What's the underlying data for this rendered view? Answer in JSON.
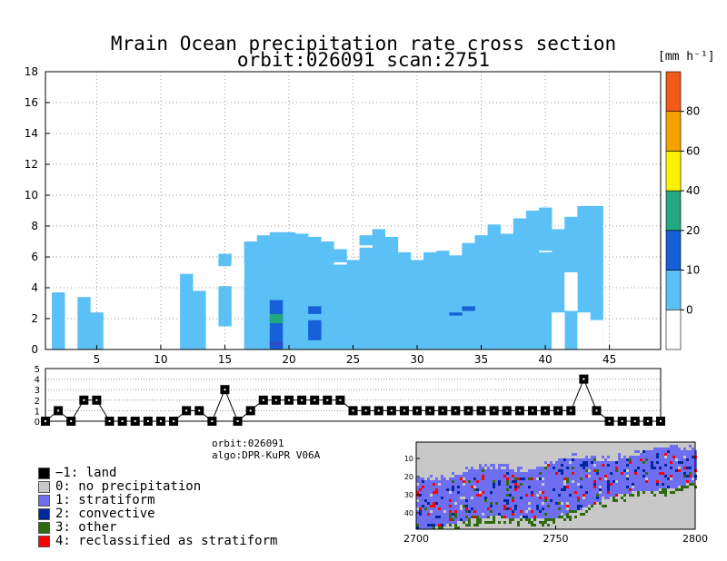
{
  "header": {
    "title": "Mrain Ocean precipitation rate cross section",
    "subtitle": "orbit:026091    scan:2751",
    "unit": "[mm h⁻¹]"
  },
  "chart_data": [
    {
      "type": "heatmap",
      "name": "precipitation-cross-section",
      "x_ticks": [
        5,
        10,
        15,
        20,
        25,
        30,
        35,
        40,
        45
      ],
      "xlim": [
        1,
        49
      ],
      "y_ticks": [
        0,
        2,
        4,
        6,
        8,
        10,
        12,
        14,
        16,
        18
      ],
      "ylim": [
        0,
        18
      ],
      "grid": true,
      "rain_columns": [
        {
          "x": 2,
          "bottom": 0,
          "top": 3.7
        },
        {
          "x": 4,
          "bottom": 0,
          "top": 3.4
        },
        {
          "x": 5,
          "bottom": 0,
          "top": 2.4
        },
        {
          "x": 12,
          "bottom": 0,
          "top": 4.9
        },
        {
          "x": 13,
          "bottom": 0,
          "top": 3.8
        },
        {
          "x": 15,
          "bottom": 1.5,
          "top": 4.1
        },
        {
          "x": 15,
          "bottom": 5.4,
          "top": 6.2
        },
        {
          "x": 17,
          "bottom": 0,
          "top": 7.0
        },
        {
          "x": 18,
          "bottom": 0,
          "top": 7.4
        },
        {
          "x": 19,
          "bottom": 0,
          "top": 7.6
        },
        {
          "x": 20,
          "bottom": 0,
          "top": 7.6
        },
        {
          "x": 21,
          "bottom": 0,
          "top": 7.5
        },
        {
          "x": 22,
          "bottom": 0,
          "top": 7.3
        },
        {
          "x": 23,
          "bottom": 0,
          "top": 7.0
        },
        {
          "x": 24,
          "bottom": 0,
          "top": 6.5
        },
        {
          "x": 25,
          "bottom": 0,
          "top": 5.8
        },
        {
          "x": 26,
          "bottom": 0,
          "top": 7.4
        },
        {
          "x": 27,
          "bottom": 0,
          "top": 7.8
        },
        {
          "x": 28,
          "bottom": 0,
          "top": 7.3
        },
        {
          "x": 29,
          "bottom": 0,
          "top": 6.3
        },
        {
          "x": 30,
          "bottom": 0,
          "top": 5.8
        },
        {
          "x": 31,
          "bottom": 0,
          "top": 6.3
        },
        {
          "x": 32,
          "bottom": 0,
          "top": 6.4
        },
        {
          "x": 33,
          "bottom": 0,
          "top": 6.1
        },
        {
          "x": 34,
          "bottom": 0,
          "top": 6.9
        },
        {
          "x": 35,
          "bottom": 0,
          "top": 7.4
        },
        {
          "x": 36,
          "bottom": 0,
          "top": 8.1
        },
        {
          "x": 37,
          "bottom": 0,
          "top": 7.5
        },
        {
          "x": 38,
          "bottom": 0,
          "top": 8.5
        },
        {
          "x": 39,
          "bottom": 0,
          "top": 9.0
        },
        {
          "x": 40,
          "bottom": 0,
          "top": 9.2
        },
        {
          "x": 41,
          "bottom": 0,
          "top": 7.8
        },
        {
          "x": 42,
          "bottom": 0,
          "top": 8.6
        },
        {
          "x": 43,
          "bottom": 0,
          "top": 9.3
        },
        {
          "x": 44,
          "bottom": 0,
          "top": 9.3
        }
      ],
      "gaps": [
        {
          "x": 16,
          "bottom": 4.5,
          "top": 5.6
        },
        {
          "x": 41,
          "bottom": 0,
          "top": 2.4
        },
        {
          "x": 42,
          "bottom": 2.5,
          "top": 5.0
        },
        {
          "x": 43,
          "bottom": 0,
          "top": 2.4
        },
        {
          "x": 44,
          "bottom": 0,
          "top": 1.9
        },
        {
          "x": 24,
          "bottom": 5.5,
          "top": 5.65
        },
        {
          "x": 26,
          "bottom": 6.6,
          "top": 6.75
        },
        {
          "x": 40,
          "bottom": 6.3,
          "top": 6.4
        }
      ],
      "intense_cells": [
        {
          "x": 19,
          "bottom": 0,
          "top": 3.2,
          "color": "#1560d8"
        },
        {
          "x": 19,
          "bottom": 1.7,
          "top": 2.3,
          "color": "#23a77f"
        },
        {
          "x": 19,
          "bottom": 0.2,
          "top": 0.5,
          "color": "#2a4fc4"
        },
        {
          "x": 22,
          "bottom": 2.3,
          "top": 2.8,
          "color": "#1560d8"
        },
        {
          "x": 22,
          "bottom": 0.6,
          "top": 1.9,
          "color": "#1560d8"
        },
        {
          "x": 34,
          "bottom": 2.5,
          "top": 2.8,
          "color": "#1560d8"
        },
        {
          "x": 33,
          "bottom": 2.2,
          "top": 2.4,
          "color": "#1560d8"
        }
      ],
      "colorbar": {
        "levels": [
          0,
          10,
          20,
          40,
          60,
          80
        ],
        "colors": [
          "#ffffff",
          "#5bc0f5",
          "#1560d8",
          "#23a77f",
          "#fff200",
          "#f5a300",
          "#f25a1a"
        ]
      }
    },
    {
      "type": "line",
      "name": "precip-type-strip",
      "ylim": [
        0,
        5
      ],
      "y_ticks": [
        0,
        1,
        2,
        3,
        4,
        5
      ],
      "x": [
        1,
        2,
        3,
        4,
        5,
        6,
        7,
        8,
        9,
        10,
        11,
        12,
        13,
        14,
        15,
        16,
        17,
        18,
        19,
        20,
        21,
        22,
        23,
        24,
        25,
        26,
        27,
        28,
        29,
        30,
        31,
        32,
        33,
        34,
        35,
        36,
        37,
        38,
        39,
        40,
        41,
        42,
        43,
        44,
        45,
        46,
        47,
        48,
        49
      ],
      "values": [
        0,
        1,
        0,
        2,
        2,
        0,
        0,
        0,
        0,
        0,
        0,
        1,
        1,
        0,
        3,
        0,
        1,
        2,
        2,
        2,
        2,
        2,
        2,
        2,
        1,
        1,
        1,
        1,
        1,
        1,
        1,
        1,
        1,
        1,
        1,
        1,
        1,
        1,
        1,
        1,
        1,
        1,
        4,
        1,
        0,
        0,
        0,
        0,
        0
      ]
    },
    {
      "type": "heatmap",
      "name": "swath-map",
      "x_ticks": [
        2700,
        2750,
        2800
      ],
      "y_ticks": [
        10,
        20,
        30,
        40
      ],
      "xlim": [
        2700,
        2800
      ],
      "ylim": [
        1,
        49
      ]
    }
  ],
  "info": {
    "orbit": "orbit:026091",
    "algo": "algo:DPR-KuPR V06A"
  },
  "legend": [
    {
      "label": "−1: land",
      "color": "#000000"
    },
    {
      "label": "0: no precipitation",
      "color": "#c8c8c8"
    },
    {
      "label": "1: stratiform",
      "color": "#6e6ef0"
    },
    {
      "label": "2: convective",
      "color": "#00289a"
    },
    {
      "label": "3: other",
      "color": "#2d6b0e"
    },
    {
      "label": "4: reclassified as stratiform",
      "color": "#ff0000"
    }
  ]
}
